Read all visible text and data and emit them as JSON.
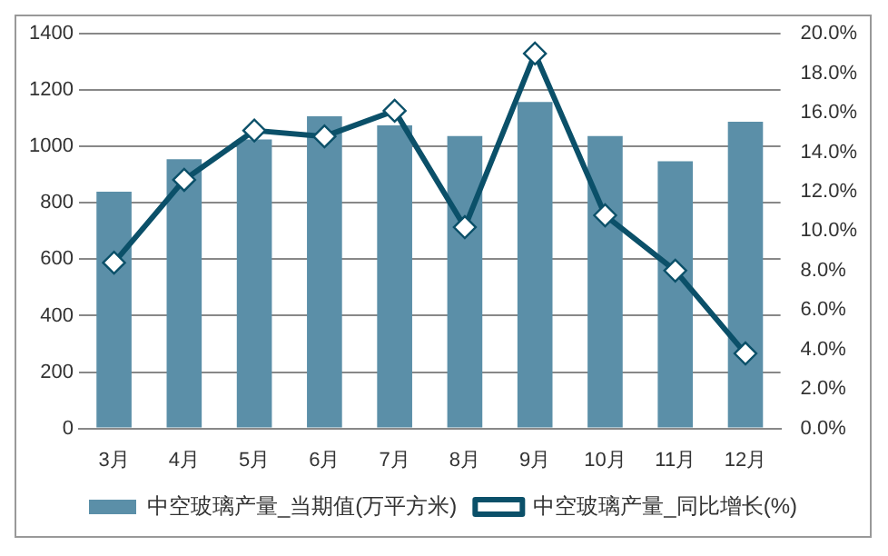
{
  "chart_data": {
    "type": "bar",
    "categories": [
      "3月",
      "4月",
      "5月",
      "6月",
      "7月",
      "8月",
      "9月",
      "10月",
      "11月",
      "12月"
    ],
    "series": [
      {
        "name": "中空玻璃产量_当期值(万平方米)",
        "color": "#5b8fa8",
        "values": [
          840,
          955,
          1025,
          1107,
          1075,
          1037,
          1158,
          1037,
          948,
          1088
        ]
      },
      {
        "name": "中空玻璃产量_同比增长(%)",
        "type": "line",
        "axis": "y2",
        "color": "#0b5069",
        "marker": "diamond",
        "values": [
          8.4,
          12.6,
          15.1,
          14.8,
          16.1,
          10.2,
          19.0,
          10.8,
          8.0,
          3.8
        ]
      }
    ],
    "ylim": [
      0,
      1400
    ],
    "yticks": [
      0,
      200,
      400,
      600,
      800,
      1000,
      1200,
      1400
    ],
    "y2lim": [
      0,
      20
    ],
    "y2ticks": [
      {
        "value": 0,
        "label": "0.0%"
      },
      {
        "value": 2,
        "label": "2.0%"
      },
      {
        "value": 4,
        "label": "4.0%"
      },
      {
        "value": 6,
        "label": "6.0%"
      },
      {
        "value": 8,
        "label": "8.0%"
      },
      {
        "value": 10,
        "label": "10.0%"
      },
      {
        "value": 12,
        "label": "12.0%"
      },
      {
        "value": 14,
        "label": "14.0%"
      },
      {
        "value": 16,
        "label": "16.0%"
      },
      {
        "value": 18,
        "label": "18.0%"
      },
      {
        "value": 20,
        "label": "20.0%"
      }
    ],
    "grid": "y",
    "legend": "bottom"
  }
}
